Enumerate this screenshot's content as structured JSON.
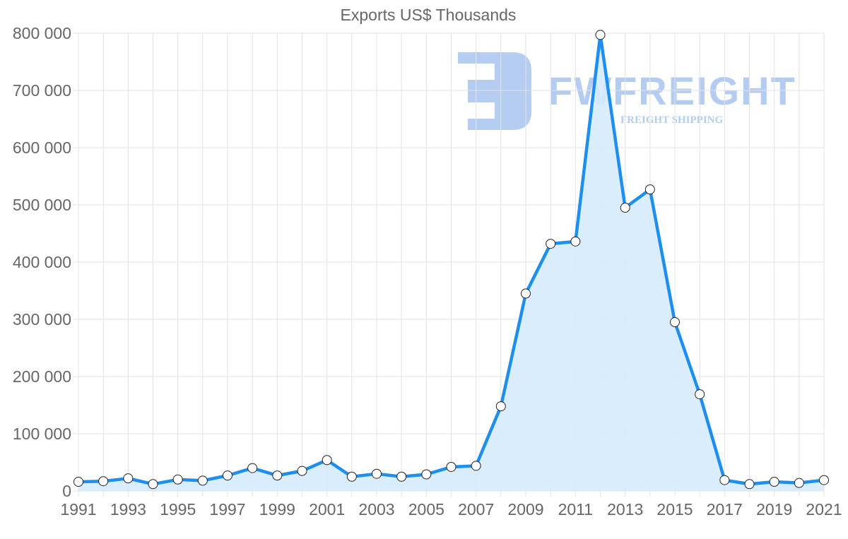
{
  "chart_data": {
    "type": "line",
    "title": "Exports US$ Thousands",
    "xlabel": "",
    "ylabel": "",
    "ylim": [
      0,
      800000
    ],
    "grid": true,
    "legend": "none",
    "fill": true,
    "x": [
      1991,
      1992,
      1993,
      1994,
      1995,
      1996,
      1997,
      1998,
      1999,
      2000,
      2001,
      2002,
      2003,
      2004,
      2005,
      2006,
      2007,
      2008,
      2009,
      2010,
      2011,
      2012,
      2013,
      2014,
      2015,
      2016,
      2017,
      2018,
      2019,
      2020,
      2021
    ],
    "series": [
      {
        "name": "Exports US$ Thousands",
        "values": [
          16000,
          17000,
          22000,
          12000,
          20000,
          18000,
          27000,
          40000,
          27000,
          35000,
          54000,
          25000,
          30000,
          25000,
          29000,
          42000,
          44000,
          148000,
          345000,
          432000,
          436000,
          797000,
          495000,
          527000,
          295000,
          169000,
          19000,
          12000,
          16000,
          14000,
          19000
        ]
      }
    ],
    "x_tick_labels": [
      "1991",
      "1993",
      "1995",
      "1997",
      "1999",
      "2001",
      "2003",
      "2005",
      "2007",
      "2009",
      "2011",
      "2013",
      "2015",
      "2017",
      "2019",
      "2021"
    ],
    "y_tick_labels": [
      "0",
      "100 000",
      "200 000",
      "300 000",
      "400 000",
      "500 000",
      "600 000",
      "700 000",
      "800 000"
    ],
    "y_ticks": [
      0,
      100000,
      200000,
      300000,
      400000,
      500000,
      600000,
      700000,
      800000
    ]
  },
  "colors": {
    "line": "#1e8fef",
    "fill": "#d6ebfc",
    "grid": "#e3e3e3",
    "text": "#666666",
    "watermark": "#a9c4f0"
  },
  "watermark": {
    "brand": "FWFREIGHT",
    "tagline": "FREIGHT SHIPPING"
  }
}
